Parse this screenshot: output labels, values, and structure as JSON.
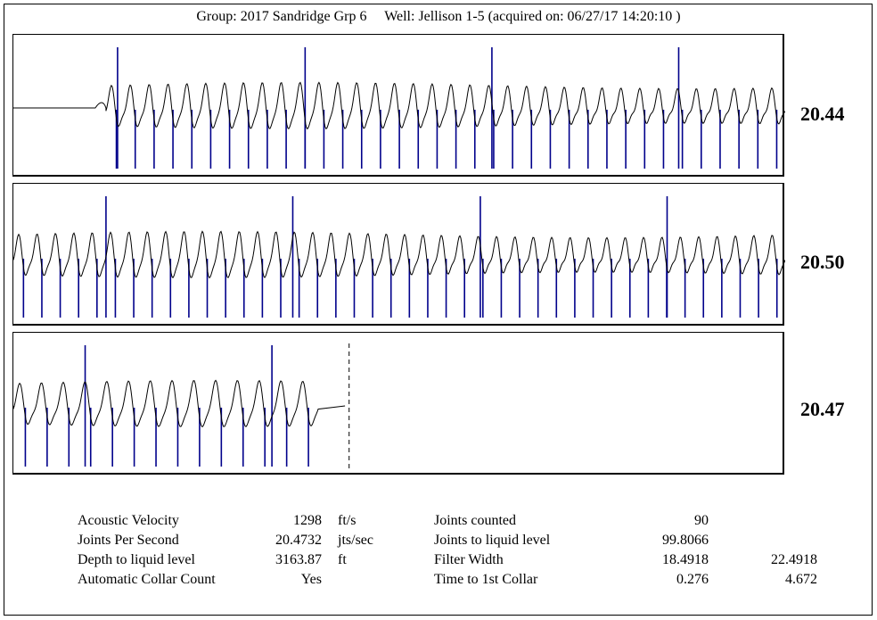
{
  "header": {
    "group": "Group: 2017 Sandridge Grp 6",
    "well": "Well: Jellison 1-5 (acquired on: 06/27/17 14:20:10 )"
  },
  "chart_data": {
    "type": "line",
    "title": "",
    "panels": [
      {
        "joints_per_second": "20.44",
        "waveform": "collar signal",
        "collar_markers": 36,
        "signal_onset_fraction": 0.12,
        "major_collar_fractions": [
          0.135,
          0.378,
          0.62,
          0.862
        ]
      },
      {
        "joints_per_second": "20.50",
        "collar_markers": 42,
        "major_collar_fractions": [
          0.12,
          0.362,
          0.605,
          0.847
        ]
      },
      {
        "joints_per_second": "20.47",
        "collar_markers": 14,
        "signal_end_fraction": 0.395,
        "liquid_level_marker_fraction": 0.435,
        "major_collar_fractions": [
          0.093,
          0.335
        ]
      }
    ],
    "colors": {
      "collar": "#00008b",
      "trace": "#000000"
    }
  },
  "stats": {
    "left": [
      {
        "label": "Acoustic Velocity",
        "value": "1298",
        "unit": "ft/s"
      },
      {
        "label": "Joints Per Second",
        "value": "20.4732",
        "unit": "jts/sec"
      },
      {
        "label": "Depth to liquid level",
        "value": "3163.87",
        "unit": "ft"
      },
      {
        "label": "Automatic Collar Count",
        "value": "Yes",
        "unit": ""
      }
    ],
    "right": [
      {
        "label": "Joints counted",
        "value": "90",
        "value2": ""
      },
      {
        "label": "Joints to liquid level",
        "value": "99.8066",
        "value2": ""
      },
      {
        "label": "Filter Width",
        "value": "18.4918",
        "value2": "22.4918"
      },
      {
        "label": "Time to 1st Collar",
        "value": "0.276",
        "value2": "4.672"
      }
    ]
  }
}
